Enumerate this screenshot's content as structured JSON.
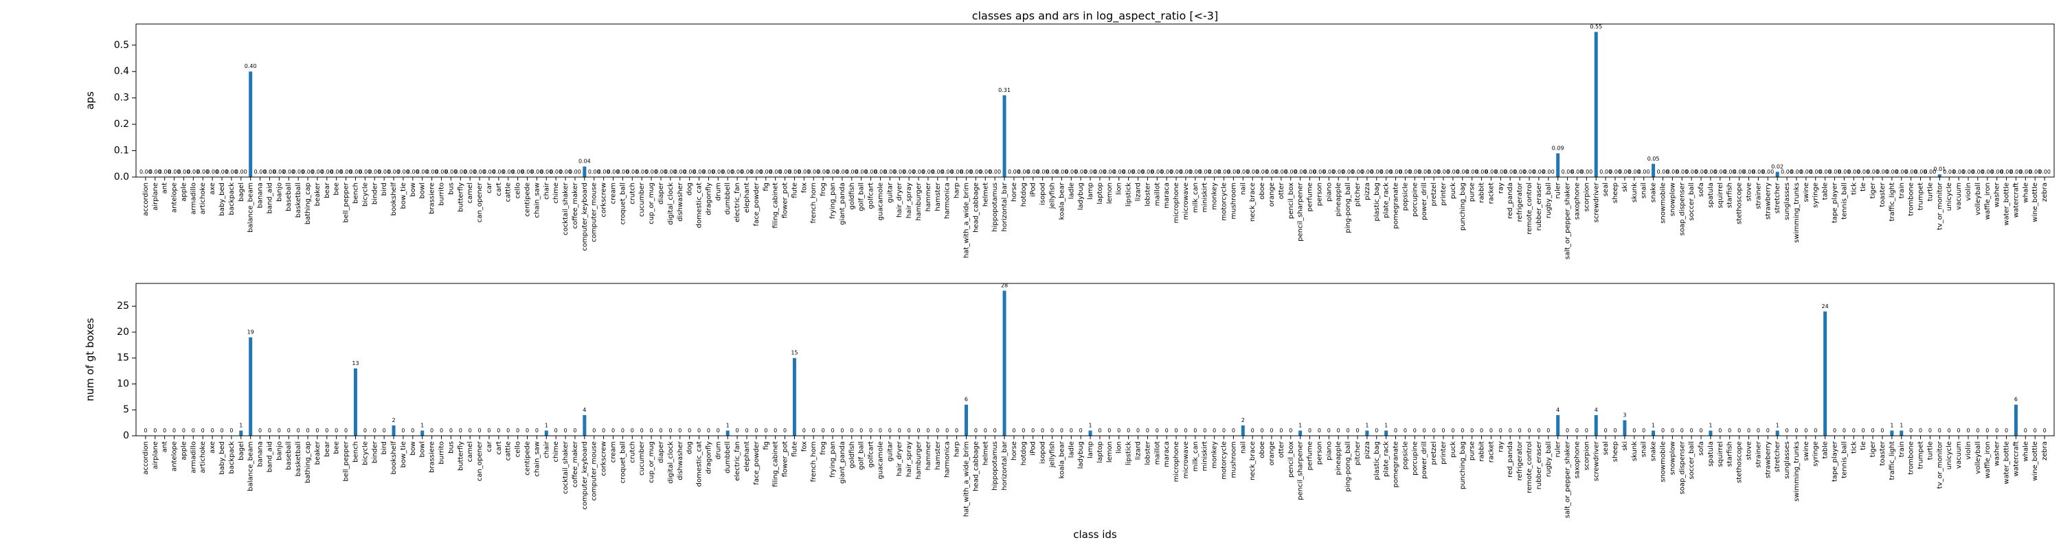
{
  "chart_data": [
    {
      "type": "bar",
      "title": "classes aps and ars in log_aspect_ratio [<-3]",
      "ylabel": "aps",
      "color": "#1f77b4",
      "categories": [
        "accordion",
        "airplane",
        "ant",
        "antelope",
        "apple",
        "armadillo",
        "artichoke",
        "axe",
        "baby_bed",
        "backpack",
        "bagel",
        "balance_beam",
        "banana",
        "band_aid",
        "banjo",
        "baseball",
        "basketball",
        "bathing_cap",
        "beaker",
        "bear",
        "bee",
        "bell_pepper",
        "bench",
        "bicycle",
        "binder",
        "bird",
        "bookshelf",
        "bow_tie",
        "bow",
        "bowl",
        "brassiere",
        "burrito",
        "bus",
        "butterfly",
        "camel",
        "can_opener",
        "car",
        "cart",
        "cattle",
        "cello",
        "centipede",
        "chain_saw",
        "chair",
        "chime",
        "cocktail_shaker",
        "coffee_maker",
        "computer_keyboard",
        "computer_mouse",
        "corkscrew",
        "cream",
        "croquet_ball",
        "crutch",
        "cucumber",
        "cup_or_mug",
        "diaper",
        "digital_clock",
        "dishwasher",
        "dog",
        "domestic_cat",
        "dragonfly",
        "drum",
        "dumbbell",
        "electric_fan",
        "elephant",
        "face_powder",
        "fig",
        "filing_cabinet",
        "flower_pot",
        "flute",
        "fox",
        "french_horn",
        "frog",
        "frying_pan",
        "giant_panda",
        "goldfish",
        "golf_ball",
        "golfcart",
        "guacamole",
        "guitar",
        "hair_dryer",
        "hair_spray",
        "hamburger",
        "hammer",
        "hamster",
        "harmonica",
        "harp",
        "hat_with_a_wide_brim",
        "head_cabbage",
        "helmet",
        "hippopotamus",
        "horizontal_bar",
        "horse",
        "hotdog",
        "iPod",
        "isopod",
        "jellyfish",
        "koala_bear",
        "ladle",
        "ladybug",
        "lamp",
        "laptop",
        "lemon",
        "lion",
        "lipstick",
        "lizard",
        "lobster",
        "maillot",
        "maraca",
        "microphone",
        "microwave",
        "milk_can",
        "miniskirt",
        "monkey",
        "motorcycle",
        "mushroom",
        "nail",
        "neck_brace",
        "oboe",
        "orange",
        "otter",
        "pencil_box",
        "pencil_sharpener",
        "perfume",
        "person",
        "piano",
        "pineapple",
        "ping-pong_ball",
        "pitcher",
        "pizza",
        "plastic_bag",
        "plate_rack",
        "pomegranate",
        "popsicle",
        "porcupine",
        "power_drill",
        "pretzel",
        "printer",
        "puck",
        "punching_bag",
        "purse",
        "rabbit",
        "racket",
        "ray",
        "red_panda",
        "refrigerator",
        "remote_control",
        "rubber_eraser",
        "rugby_ball",
        "ruler",
        "salt_or_pepper_shaker",
        "saxophone",
        "scorpion",
        "screwdriver",
        "seal",
        "sheep",
        "ski",
        "skunk",
        "snail",
        "snake",
        "snowmobile",
        "snowplow",
        "soap_dispenser",
        "soccer_ball",
        "sofa",
        "spatula",
        "squirrel",
        "starfish",
        "stethoscope",
        "stove",
        "strainer",
        "strawberry",
        "stretcher",
        "sunglasses",
        "swimming_trunks",
        "swine",
        "syringe",
        "table",
        "tape_player",
        "tennis_ball",
        "tick",
        "tie",
        "tiger",
        "toaster",
        "traffic_light",
        "train",
        "trombone",
        "trumpet",
        "turtle",
        "tv_or_monitor",
        "unicycle",
        "vacuum",
        "violin",
        "volleyball",
        "waffle_iron",
        "washer",
        "water_bottle",
        "watercraft",
        "whale",
        "wine_bottle",
        "zebra"
      ],
      "values": [
        0,
        0,
        0,
        0,
        0,
        0,
        0,
        0,
        0,
        0,
        0,
        0.4,
        0,
        0,
        0,
        0,
        0,
        0,
        0,
        0,
        0,
        0,
        0,
        0,
        0,
        0,
        0,
        0,
        0,
        0,
        0,
        0,
        0,
        0,
        0,
        0,
        0,
        0,
        0,
        0,
        0,
        0,
        0,
        0,
        0,
        0,
        0.04,
        0,
        0,
        0,
        0,
        0,
        0,
        0,
        0,
        0,
        0,
        0,
        0,
        0,
        0,
        0,
        0,
        0,
        0,
        0,
        0,
        0,
        0,
        0,
        0,
        0,
        0,
        0,
        0,
        0,
        0,
        0,
        0,
        0,
        0,
        0,
        0,
        0,
        0,
        0,
        0,
        0,
        0,
        0,
        0.31,
        0,
        0,
        0,
        0,
        0,
        0,
        0,
        0,
        0,
        0,
        0,
        0,
        0,
        0,
        0,
        0,
        0,
        0,
        0,
        0,
        0,
        0,
        0,
        0,
        0,
        0,
        0,
        0,
        0,
        0,
        0,
        0,
        0,
        0,
        0,
        0,
        0,
        0,
        0,
        0,
        0,
        0,
        0,
        0,
        0,
        0,
        0,
        0,
        0,
        0,
        0,
        0,
        0,
        0,
        0,
        0,
        0,
        0.09,
        0,
        0,
        0,
        0.55,
        0,
        0,
        0,
        0,
        0,
        0.05,
        0,
        0,
        0,
        0,
        0,
        0,
        0,
        0,
        0,
        0,
        0,
        0,
        0.02,
        0,
        0,
        0,
        0,
        0,
        0,
        0,
        0,
        0,
        0,
        0,
        0,
        0,
        0,
        0,
        0,
        0.01,
        0,
        0,
        0,
        0,
        0,
        0,
        0,
        0,
        0,
        0,
        0
      ],
      "value_labels": [
        "0.00",
        "0.00",
        "0.00",
        "0.00",
        "0.00",
        "0.00",
        "0.00",
        "0.00",
        "0.00",
        "0.00",
        "0.00",
        "0.40",
        "0.00",
        "0.00",
        "0.00",
        "0.00",
        "0.00",
        "0.00",
        "0.00",
        "0.00",
        "0.00",
        "0.00",
        "0.00",
        "0.00",
        "0.00",
        "0.00",
        "0.00",
        "0.00",
        "0.00",
        "0.00",
        "0.00",
        "0.00",
        "0.00",
        "0.00",
        "0.00",
        "0.00",
        "0.00",
        "0.00",
        "0.00",
        "0.00",
        "0.00",
        "0.00",
        "0.00",
        "0.00",
        "0.00",
        "0.00",
        "0.04",
        "0.00",
        "0.00",
        "0.00",
        "0.00",
        "0.00",
        "0.00",
        "0.00",
        "0.00",
        "0.00",
        "0.00",
        "0.00",
        "0.00",
        "0.00",
        "0.00",
        "0.00",
        "0.00",
        "0.00",
        "0.00",
        "0.00",
        "0.00",
        "0.00",
        "0.00",
        "0.00",
        "0.00",
        "0.00",
        "0.00",
        "0.00",
        "0.00",
        "0.00",
        "0.00",
        "0.00",
        "0.00",
        "0.00",
        "0.00",
        "0.00",
        "0.00",
        "0.00",
        "0.00",
        "0.00",
        "0.00",
        "0.00",
        "0.00",
        "0.00",
        "0.31",
        "0.00",
        "0.00",
        "0.00",
        "0.00",
        "0.00",
        "0.00",
        "0.00",
        "0.00",
        "0.00",
        "0.00",
        "0.00",
        "0.00",
        "0.00",
        "0.00",
        "0.00",
        "0.00",
        "0.00",
        "0.00",
        "0.00",
        "0.00",
        "0.00",
        "0.00",
        "0.00",
        "0.00",
        "0.00",
        "0.00",
        "0.00",
        "0.00",
        "0.00",
        "0.00",
        "0.00",
        "0.00",
        "0.00",
        "0.00",
        "0.00",
        "0.00",
        "0.00",
        "0.00",
        "0.00",
        "0.00",
        "0.00",
        "0.00",
        "0.00",
        "0.00",
        "0.00",
        "0.00",
        "0.00",
        "0.00",
        "0.00",
        "0.00",
        "0.00",
        "0.00",
        "0.00",
        "0.00",
        "0.00",
        "0.00",
        "0.00",
        "0.09",
        "0.00",
        "0.00",
        "0.00",
        "0.55",
        "0.00",
        "0.00",
        "0.00",
        "0.00",
        "0.00",
        "0.05",
        "0.00",
        "0.00",
        "0.00",
        "0.00",
        "0.00",
        "0.00",
        "0.00",
        "0.00",
        "0.00",
        "0.00",
        "0.00",
        "0.00",
        "0.02",
        "0.00",
        "0.00",
        "0.00",
        "0.00",
        "0.00",
        "0.00",
        "0.00",
        "0.00",
        "0.00",
        "0.00",
        "0.00",
        "0.00",
        "0.00",
        "0.00",
        "0.00",
        "0.00",
        "0.01",
        "0.00",
        "0.00",
        "0.00",
        "0.00",
        "0.00",
        "0.00",
        "0.00",
        "0.00",
        "0.00",
        "0.00",
        "0.00"
      ],
      "ylim": [
        0,
        0.58
      ],
      "yticks": [
        {
          "value": 0,
          "label": "0.0"
        },
        0.1,
        0.2,
        0.3,
        0.4,
        0.5
      ]
    },
    {
      "type": "bar",
      "ylabel": "num of gt boxes",
      "xlabel": "class ids",
      "color": "#1f77b4",
      "categories": [
        "accordion",
        "airplane",
        "ant",
        "antelope",
        "apple",
        "armadillo",
        "artichoke",
        "axe",
        "baby_bed",
        "backpack",
        "bagel",
        "balance_beam",
        "banana",
        "band_aid",
        "banjo",
        "baseball",
        "basketball",
        "bathing_cap",
        "beaker",
        "bear",
        "bee",
        "bell_pepper",
        "bench",
        "bicycle",
        "binder",
        "bird",
        "bookshelf",
        "bow_tie",
        "bow",
        "bowl",
        "brassiere",
        "burrito",
        "bus",
        "butterfly",
        "camel",
        "can_opener",
        "car",
        "cart",
        "cattle",
        "cello",
        "centipede",
        "chain_saw",
        "chair",
        "chime",
        "cocktail_shaker",
        "coffee_maker",
        "computer_keyboard",
        "computer_mouse",
        "corkscrew",
        "cream",
        "croquet_ball",
        "crutch",
        "cucumber",
        "cup_or_mug",
        "diaper",
        "digital_clock",
        "dishwasher",
        "dog",
        "domestic_cat",
        "dragonfly",
        "drum",
        "dumbbell",
        "electric_fan",
        "elephant",
        "face_powder",
        "fig",
        "filing_cabinet",
        "flower_pot",
        "flute",
        "fox",
        "french_horn",
        "frog",
        "frying_pan",
        "giant_panda",
        "goldfish",
        "golf_ball",
        "golfcart",
        "guacamole",
        "guitar",
        "hair_dryer",
        "hair_spray",
        "hamburger",
        "hammer",
        "hamster",
        "harmonica",
        "harp",
        "hat_with_a_wide_brim",
        "head_cabbage",
        "helmet",
        "hippopotamus",
        "horizontal_bar",
        "horse",
        "hotdog",
        "iPod",
        "isopod",
        "jellyfish",
        "koala_bear",
        "ladle",
        "ladybug",
        "lamp",
        "laptop",
        "lemon",
        "lion",
        "lipstick",
        "lizard",
        "lobster",
        "maillot",
        "maraca",
        "microphone",
        "microwave",
        "milk_can",
        "miniskirt",
        "monkey",
        "motorcycle",
        "mushroom",
        "nail",
        "neck_brace",
        "oboe",
        "orange",
        "otter",
        "pencil_box",
        "pencil_sharpener",
        "perfume",
        "person",
        "piano",
        "pineapple",
        "ping-pong_ball",
        "pitcher",
        "pizza",
        "plastic_bag",
        "plate_rack",
        "pomegranate",
        "popsicle",
        "porcupine",
        "power_drill",
        "pretzel",
        "printer",
        "puck",
        "punching_bag",
        "purse",
        "rabbit",
        "racket",
        "ray",
        "red_panda",
        "refrigerator",
        "remote_control",
        "rubber_eraser",
        "rugby_ball",
        "ruler",
        "salt_or_pepper_shaker",
        "saxophone",
        "scorpion",
        "screwdriver",
        "seal",
        "sheep",
        "ski",
        "skunk",
        "snail",
        "snake",
        "snowmobile",
        "snowplow",
        "soap_dispenser",
        "soccer_ball",
        "sofa",
        "spatula",
        "squirrel",
        "starfish",
        "stethoscope",
        "stove",
        "strainer",
        "strawberry",
        "stretcher",
        "sunglasses",
        "swimming_trunks",
        "swine",
        "syringe",
        "table",
        "tape_player",
        "tennis_ball",
        "tick",
        "tie",
        "tiger",
        "toaster",
        "traffic_light",
        "train",
        "trombone",
        "trumpet",
        "turtle",
        "tv_or_monitor",
        "unicycle",
        "vacuum",
        "violin",
        "volleyball",
        "waffle_iron",
        "washer",
        "water_bottle",
        "watercraft",
        "whale",
        "wine_bottle",
        "zebra"
      ],
      "values": [
        0,
        0,
        0,
        0,
        0,
        0,
        0,
        0,
        0,
        0,
        1,
        19,
        0,
        0,
        0,
        0,
        0,
        0,
        0,
        0,
        0,
        0,
        13,
        0,
        0,
        0,
        2,
        0,
        0,
        1,
        0,
        0,
        0,
        0,
        0,
        0,
        0,
        0,
        0,
        0,
        0,
        0,
        1,
        0,
        0,
        0,
        4,
        0,
        0,
        0,
        0,
        0,
        0,
        0,
        0,
        0,
        0,
        0,
        0,
        0,
        0,
        1,
        0,
        0,
        0,
        0,
        0,
        0,
        15,
        0,
        0,
        0,
        0,
        0,
        0,
        0,
        0,
        0,
        0,
        0,
        0,
        0,
        0,
        0,
        0,
        0,
        6,
        0,
        0,
        0,
        28,
        0,
        0,
        0,
        0,
        0,
        0,
        0,
        0,
        1,
        0,
        0,
        0,
        0,
        0,
        0,
        0,
        0,
        0,
        0,
        0,
        0,
        0,
        0,
        0,
        2,
        0,
        0,
        0,
        0,
        0,
        1,
        0,
        0,
        0,
        0,
        0,
        0,
        1,
        0,
        1,
        0,
        0,
        0,
        0,
        0,
        0,
        0,
        0,
        0,
        0,
        0,
        0,
        0,
        0,
        0,
        0,
        0,
        4,
        0,
        0,
        0,
        4,
        0,
        0,
        3,
        0,
        0,
        1,
        0,
        0,
        0,
        0,
        0,
        1,
        0,
        0,
        0,
        0,
        0,
        0,
        1,
        0,
        0,
        0,
        0,
        24,
        0,
        0,
        0,
        0,
        0,
        0,
        1,
        1,
        0,
        0,
        0,
        0,
        0,
        0,
        0,
        0,
        0,
        0,
        0,
        6,
        0,
        0,
        0
      ],
      "ylim": [
        0,
        29.4
      ],
      "yticks": [
        0,
        5,
        10,
        15,
        20,
        25
      ]
    }
  ]
}
